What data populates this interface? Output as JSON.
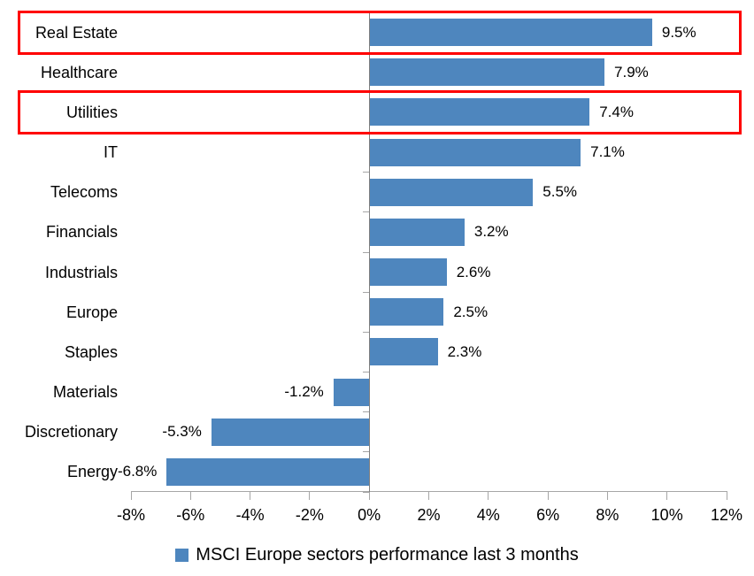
{
  "chart_data": {
    "type": "bar",
    "orientation": "horizontal",
    "categories": [
      "Real Estate",
      "Healthcare",
      "Utilities",
      "IT",
      "Telecoms",
      "Financials",
      "Industrials",
      "Europe",
      "Staples",
      "Materials",
      "Discretionary",
      "Energy"
    ],
    "values": [
      9.5,
      7.9,
      7.4,
      7.1,
      5.5,
      3.2,
      2.6,
      2.5,
      2.3,
      -1.2,
      -5.3,
      -6.8
    ],
    "value_labels": [
      "9.5%",
      "7.9%",
      "7.4%",
      "7.1%",
      "5.5%",
      "3.2%",
      "2.6%",
      "2.5%",
      "2.3%",
      "-1.2%",
      "-5.3%",
      "-6.8%"
    ],
    "xlim": [
      -8,
      12
    ],
    "x_tick_step": 2,
    "x_tick_labels": [
      "-8%",
      "-6%",
      "-4%",
      "-2%",
      "0%",
      "2%",
      "4%",
      "6%",
      "8%",
      "10%",
      "12%"
    ],
    "grid": false,
    "legend_position": "bottom",
    "legend": [
      "MSCI Europe sectors performance last 3 months"
    ],
    "highlighted_categories": [
      "Real Estate",
      "Utilities"
    ],
    "colors": {
      "bar": "#4E86BE",
      "highlight_border": "#FF0000",
      "axis": "#A6A6A6",
      "zero_line": "#7F7F7F",
      "text": "#000000"
    }
  }
}
